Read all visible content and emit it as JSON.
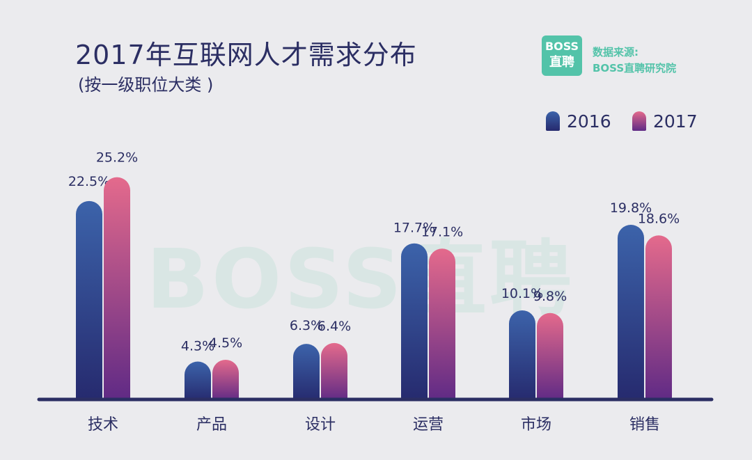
{
  "header": {
    "title": "2017年互联网人才需求分布",
    "subtitle": "(按一级职位大类 )"
  },
  "source": {
    "logo_line1": "BOSS",
    "logo_line2": "直聘",
    "label": "数据来源:",
    "name": "BOSS直聘研究院"
  },
  "watermark": "BOSS直聘",
  "colors": {
    "background": "#ebebee",
    "series_2016_top": "#3c63aa",
    "series_2016_bottom": "#262a6e",
    "series_2017_top": "#e46a8c",
    "series_2017_bottom": "#5f2a85",
    "axis": "#2b2e63",
    "text": "#2b2e63",
    "brand": "#53c3a9"
  },
  "chart_data": {
    "type": "bar",
    "title": "2017年互联网人才需求分布",
    "subtitle": "(按一级职位大类 )",
    "categories": [
      "技术",
      "产品",
      "设计",
      "运营",
      "市场",
      "销售"
    ],
    "series": [
      {
        "name": "2016",
        "values": [
          22.5,
          4.3,
          6.3,
          17.7,
          10.1,
          19.8
        ],
        "labels": [
          "22.5%",
          "4.3%",
          "6.3%",
          "17.7%",
          "10.1%",
          "19.8%"
        ]
      },
      {
        "name": "2017",
        "values": [
          25.2,
          4.5,
          6.4,
          17.1,
          9.8,
          18.6
        ],
        "labels": [
          "25.2%",
          "4.5%",
          "6.4%",
          "17.1%",
          "9.8%",
          "18.6%"
        ]
      }
    ],
    "ylim": [
      0,
      26
    ],
    "grid": false,
    "legend_position": "top-right",
    "xlabel": "",
    "ylabel": ""
  }
}
